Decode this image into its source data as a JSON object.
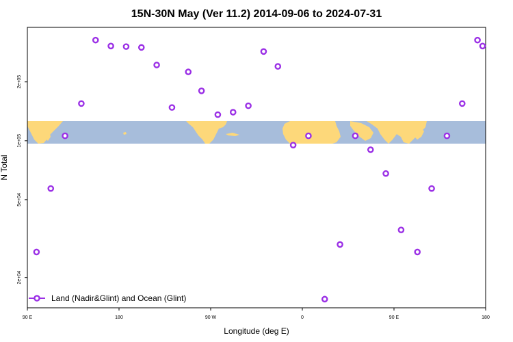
{
  "chart_data": {
    "type": "scatter",
    "title": "15N-30N May (Ver 11.2)   2014-09-06 to 2024-07-31",
    "xlabel": "Longitude (deg E)",
    "ylabel": "N Total",
    "x_ticks": [
      {
        "value": 90,
        "label": "90 E"
      },
      {
        "value": 180,
        "label": "180"
      },
      {
        "value": 270,
        "label": "90 W"
      },
      {
        "value": 360,
        "label": "0"
      },
      {
        "value": 450,
        "label": "90 E"
      },
      {
        "value": 540,
        "label": "180"
      }
    ],
    "xlim": [
      90,
      540
    ],
    "y_scale": "log",
    "y_ticks": [
      {
        "value": 20000,
        "label": "2e+04"
      },
      {
        "value": 50000,
        "label": "5e+04"
      },
      {
        "value": 100000,
        "label": "1e+05"
      },
      {
        "value": 200000,
        "label": "2e+05"
      }
    ],
    "ylim": [
      14000,
      380000
    ],
    "series": [
      {
        "name": "Land (Nadir&Glint) and Ocean (Glint)",
        "color": "#9b30e6",
        "marker": "open-circle",
        "points": [
          {
            "x": 99,
            "y": 27000
          },
          {
            "x": 113,
            "y": 57000
          },
          {
            "x": 127,
            "y": 106000
          },
          {
            "x": 143,
            "y": 155000
          },
          {
            "x": 157,
            "y": 327000
          },
          {
            "x": 172,
            "y": 305000
          },
          {
            "x": 187,
            "y": 303000
          },
          {
            "x": 202,
            "y": 300000
          },
          {
            "x": 217,
            "y": 244000
          },
          {
            "x": 232,
            "y": 148000
          },
          {
            "x": 248,
            "y": 225000
          },
          {
            "x": 261,
            "y": 180000
          },
          {
            "x": 277,
            "y": 136000
          },
          {
            "x": 292,
            "y": 140000
          },
          {
            "x": 307,
            "y": 151000
          },
          {
            "x": 322,
            "y": 286000
          },
          {
            "x": 336,
            "y": 240000
          },
          {
            "x": 351,
            "y": 95000
          },
          {
            "x": 366,
            "y": 106000
          },
          {
            "x": 382,
            "y": 15500
          },
          {
            "x": 397,
            "y": 29500
          },
          {
            "x": 412,
            "y": 106000
          },
          {
            "x": 427,
            "y": 90000
          },
          {
            "x": 442,
            "y": 68000
          },
          {
            "x": 457,
            "y": 35000
          },
          {
            "x": 473,
            "y": 27000
          },
          {
            "x": 487,
            "y": 57000
          },
          {
            "x": 502,
            "y": 106000
          },
          {
            "x": 517,
            "y": 155000
          },
          {
            "x": 532,
            "y": 327000
          },
          {
            "x": 537,
            "y": 305000
          }
        ]
      }
    ],
    "legend_position": "bottom-left",
    "background_map": {
      "ocean_color": "#a7bddb",
      "land_color": "#fdd87a"
    }
  }
}
